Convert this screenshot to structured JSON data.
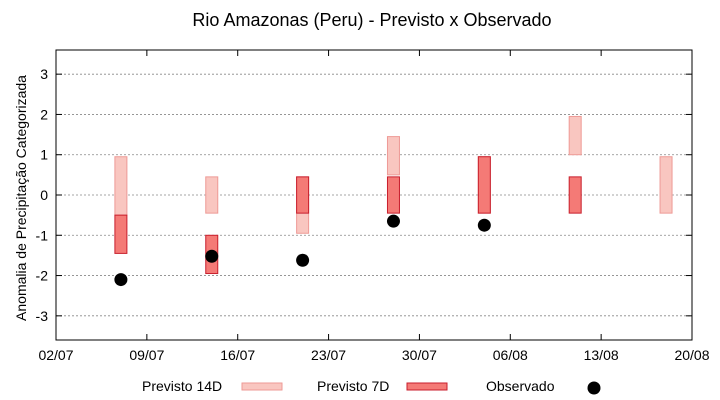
{
  "chart_data": {
    "type": "floating-bar",
    "title": "Rio Amazonas (Peru) - Previsto x Observado",
    "xlabel": "",
    "ylabel": "Anomalia de Precipitação Categorizada",
    "ylim": [
      -3.6,
      3.6
    ],
    "yticks": [
      -3,
      -2,
      -1,
      0,
      1,
      2,
      3
    ],
    "ytick_labels": [
      "-3",
      "-2",
      "-1",
      "0",
      "1",
      "2",
      "3"
    ],
    "xlim": [
      "2021-07-02",
      "2021-08-20"
    ],
    "xticks": [
      "2021-07-02",
      "2021-07-09",
      "2021-07-16",
      "2021-07-23",
      "2021-07-30",
      "2021-08-06",
      "2021-08-13",
      "2021-08-20"
    ],
    "xtick_labels": [
      "02/07",
      "09/07",
      "16/07",
      "23/07",
      "30/07",
      "06/08",
      "13/08",
      "20/08"
    ],
    "grid": "horizontal",
    "legend_position": "bottom",
    "colors": {
      "previsto14d_fill": "#f9c6c0",
      "previsto14d_stroke": "#ee9a96",
      "previsto7d_fill": "#f47a76",
      "previsto7d_stroke": "#c81e2c",
      "observado": "#000000"
    },
    "series": [
      {
        "name": "Previsto 14D",
        "kind": "range",
        "points": [
          {
            "x": "2021-07-07",
            "low": -0.5,
            "high": 0.95
          },
          {
            "x": "2021-07-14",
            "low": -0.45,
            "high": 0.45
          },
          {
            "x": "2021-07-21",
            "low": -0.95,
            "high": 0.45
          },
          {
            "x": "2021-07-28",
            "low": 0.5,
            "high": 1.45
          },
          {
            "x": "2021-08-04",
            "low": -0.45,
            "high": 0.95
          },
          {
            "x": "2021-08-11",
            "low": 1.0,
            "high": 1.95
          },
          {
            "x": "2021-08-18",
            "low": -0.45,
            "high": 0.95
          }
        ]
      },
      {
        "name": "Previsto 7D",
        "kind": "range",
        "points": [
          {
            "x": "2021-07-07",
            "low": -1.45,
            "high": -0.5
          },
          {
            "x": "2021-07-14",
            "low": -1.95,
            "high": -1.0
          },
          {
            "x": "2021-07-21",
            "low": -0.45,
            "high": 0.45
          },
          {
            "x": "2021-07-28",
            "low": -0.45,
            "high": 0.45
          },
          {
            "x": "2021-08-04",
            "low": -0.45,
            "high": 0.95
          },
          {
            "x": "2021-08-11",
            "low": -0.45,
            "high": 0.45
          }
        ]
      },
      {
        "name": "Observado",
        "kind": "point",
        "points": [
          {
            "x": "2021-07-07",
            "y": -2.1
          },
          {
            "x": "2021-07-14",
            "y": -1.52
          },
          {
            "x": "2021-07-21",
            "y": -1.62
          },
          {
            "x": "2021-07-28",
            "y": -0.65
          },
          {
            "x": "2021-08-04",
            "y": -0.75
          }
        ]
      }
    ]
  }
}
